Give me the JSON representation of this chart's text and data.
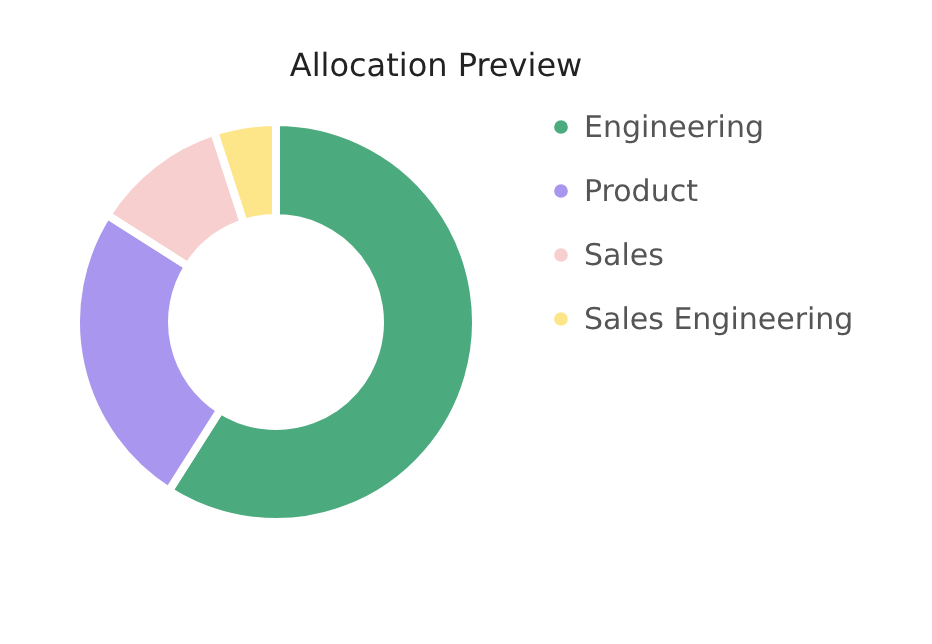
{
  "chart_data": {
    "type": "donut",
    "title": "Allocation Preview",
    "categories": [
      "Engineering",
      "Product",
      "Sales",
      "Sales Engineering"
    ],
    "values": [
      59,
      25,
      11,
      5
    ],
    "colors": [
      "#4caa7f",
      "#a996ef",
      "#f7cfcf",
      "#fde68a"
    ],
    "legend": "right"
  }
}
